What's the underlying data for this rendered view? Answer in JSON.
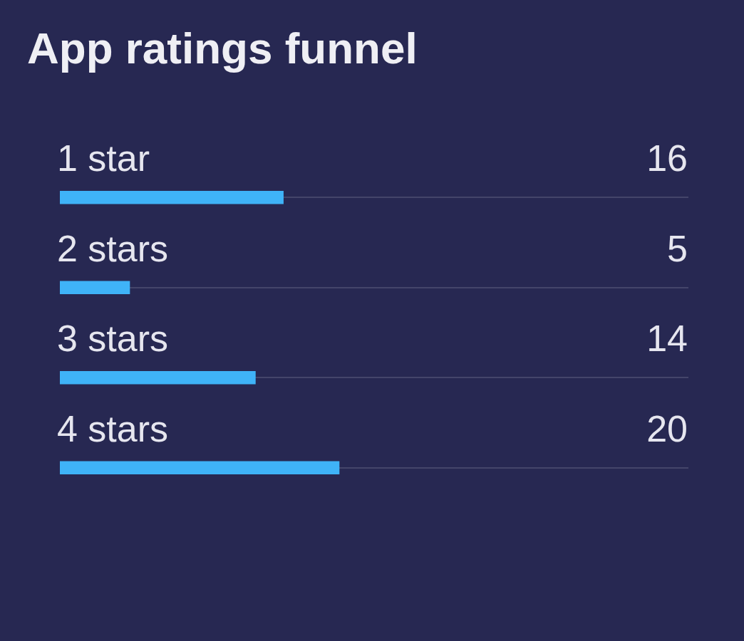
{
  "chart_data": {
    "type": "bar",
    "orientation": "horizontal",
    "title": "App ratings funnel",
    "categories": [
      "1 star",
      "2 stars",
      "3 stars",
      "4 stars"
    ],
    "values": [
      16,
      5,
      14,
      20
    ],
    "color": "#3fb3f8",
    "xlim": [
      0,
      45
    ],
    "grid": "y",
    "data_labels": true
  }
}
